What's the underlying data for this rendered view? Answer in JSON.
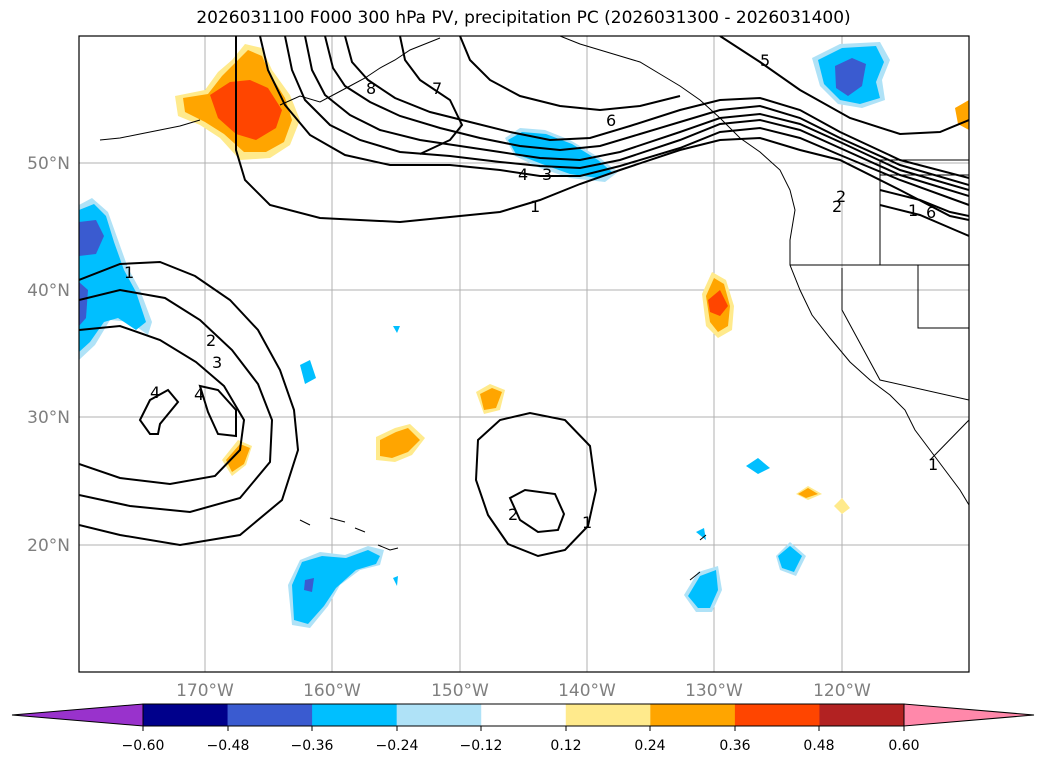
{
  "title": "2026031100 F000 300 hPa PV, precipitation PC (2026031300 - 2026031400)",
  "map": {
    "lat_ticks": [
      "50°N",
      "40°N",
      "30°N",
      "20°N"
    ],
    "lon_ticks": [
      "170°W",
      "160°W",
      "150°W",
      "140°W",
      "130°W",
      "120°W"
    ],
    "contour_labels": [
      "8",
      "7",
      "6",
      "5",
      "4",
      "3",
      "1",
      "2",
      "6",
      "1",
      "2",
      "3",
      "4",
      "4",
      "2",
      "1",
      "1",
      "2",
      "1"
    ]
  },
  "colorbar": {
    "tick_labels": [
      "−0.60",
      "−0.48",
      "−0.36",
      "−0.24",
      "−0.12",
      "0.12",
      "0.24",
      "0.36",
      "0.48",
      "0.60"
    ],
    "colors": [
      "#9932cc",
      "#00008b",
      "#3a5bd0",
      "#00bfff",
      "#afe2f7",
      "#ffffff",
      "#ffea8c",
      "#ffa500",
      "#ff4500",
      "#b22222",
      "#ff88aa"
    ]
  }
}
